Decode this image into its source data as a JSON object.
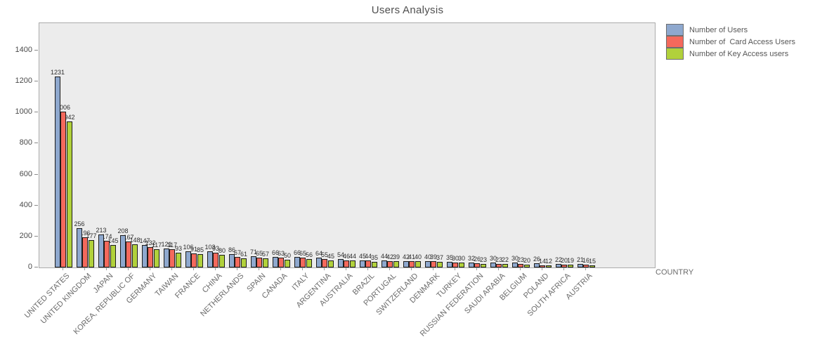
{
  "header": {
    "title": "Users Analysis"
  },
  "chart_data": {
    "type": "bar",
    "title": "Users Analysis",
    "xlabel": "COUNTRY",
    "ylabel": "",
    "ylim": [
      0,
      1577
    ],
    "yticks": [
      0,
      200,
      400,
      600,
      800,
      1000,
      1200,
      1400
    ],
    "grid": false,
    "legend_position": "top-right",
    "plot_bg": "#ececec",
    "bar_border": "#1b1b1b",
    "categories": [
      "UNITED STATES",
      "UNITED KINGDOM",
      "JAPAN",
      "KOREA, REPUBLIC OF",
      "GERMANY",
      "TAIWAN",
      "FRANCE",
      "CHINA",
      "NETHERLANDS",
      "SPAIN",
      "CANADA",
      "ITALY",
      "ARGENTINA",
      "AUSTRALIA",
      "BRAZIL",
      "PORTUGAL",
      "SWITZERLAND",
      "DENMARK",
      "TURKEY",
      "RUSSIAN FEDERATION",
      "SAUDI ARABIA",
      "BELGIUM",
      "POLAND",
      "SOUTH AFRICA",
      "AUSTRIA"
    ],
    "series": [
      {
        "name": "Number of Users",
        "color": "#8ea8ce",
        "values": [
          1231,
          256,
          213,
          208,
          147,
          121,
          106,
          103,
          86,
          71,
          66,
          66,
          64,
          54,
          45,
          44,
          42,
          40,
          35,
          32,
          30,
          30,
          26,
          22,
          21
        ]
      },
      {
        "name": "Number of  Card Access Users",
        "color": "#f4695c",
        "values": [
          1006,
          196,
          174,
          167,
          132,
          117,
          91,
          93,
          67,
          65,
          63,
          65,
          55,
          46,
          44,
          42,
          41,
          39,
          30,
          26,
          23,
          23,
          14,
          20,
          16
        ]
      },
      {
        "name": "Number of Key Access users",
        "color": "#b1d13b",
        "values": [
          942,
          177,
          145,
          148,
          117,
          93,
          85,
          80,
          61,
          57,
          50,
          56,
          45,
          44,
          35,
          39,
          40,
          37,
          30,
          23,
          22,
          20,
          12,
          19,
          15
        ]
      }
    ]
  }
}
